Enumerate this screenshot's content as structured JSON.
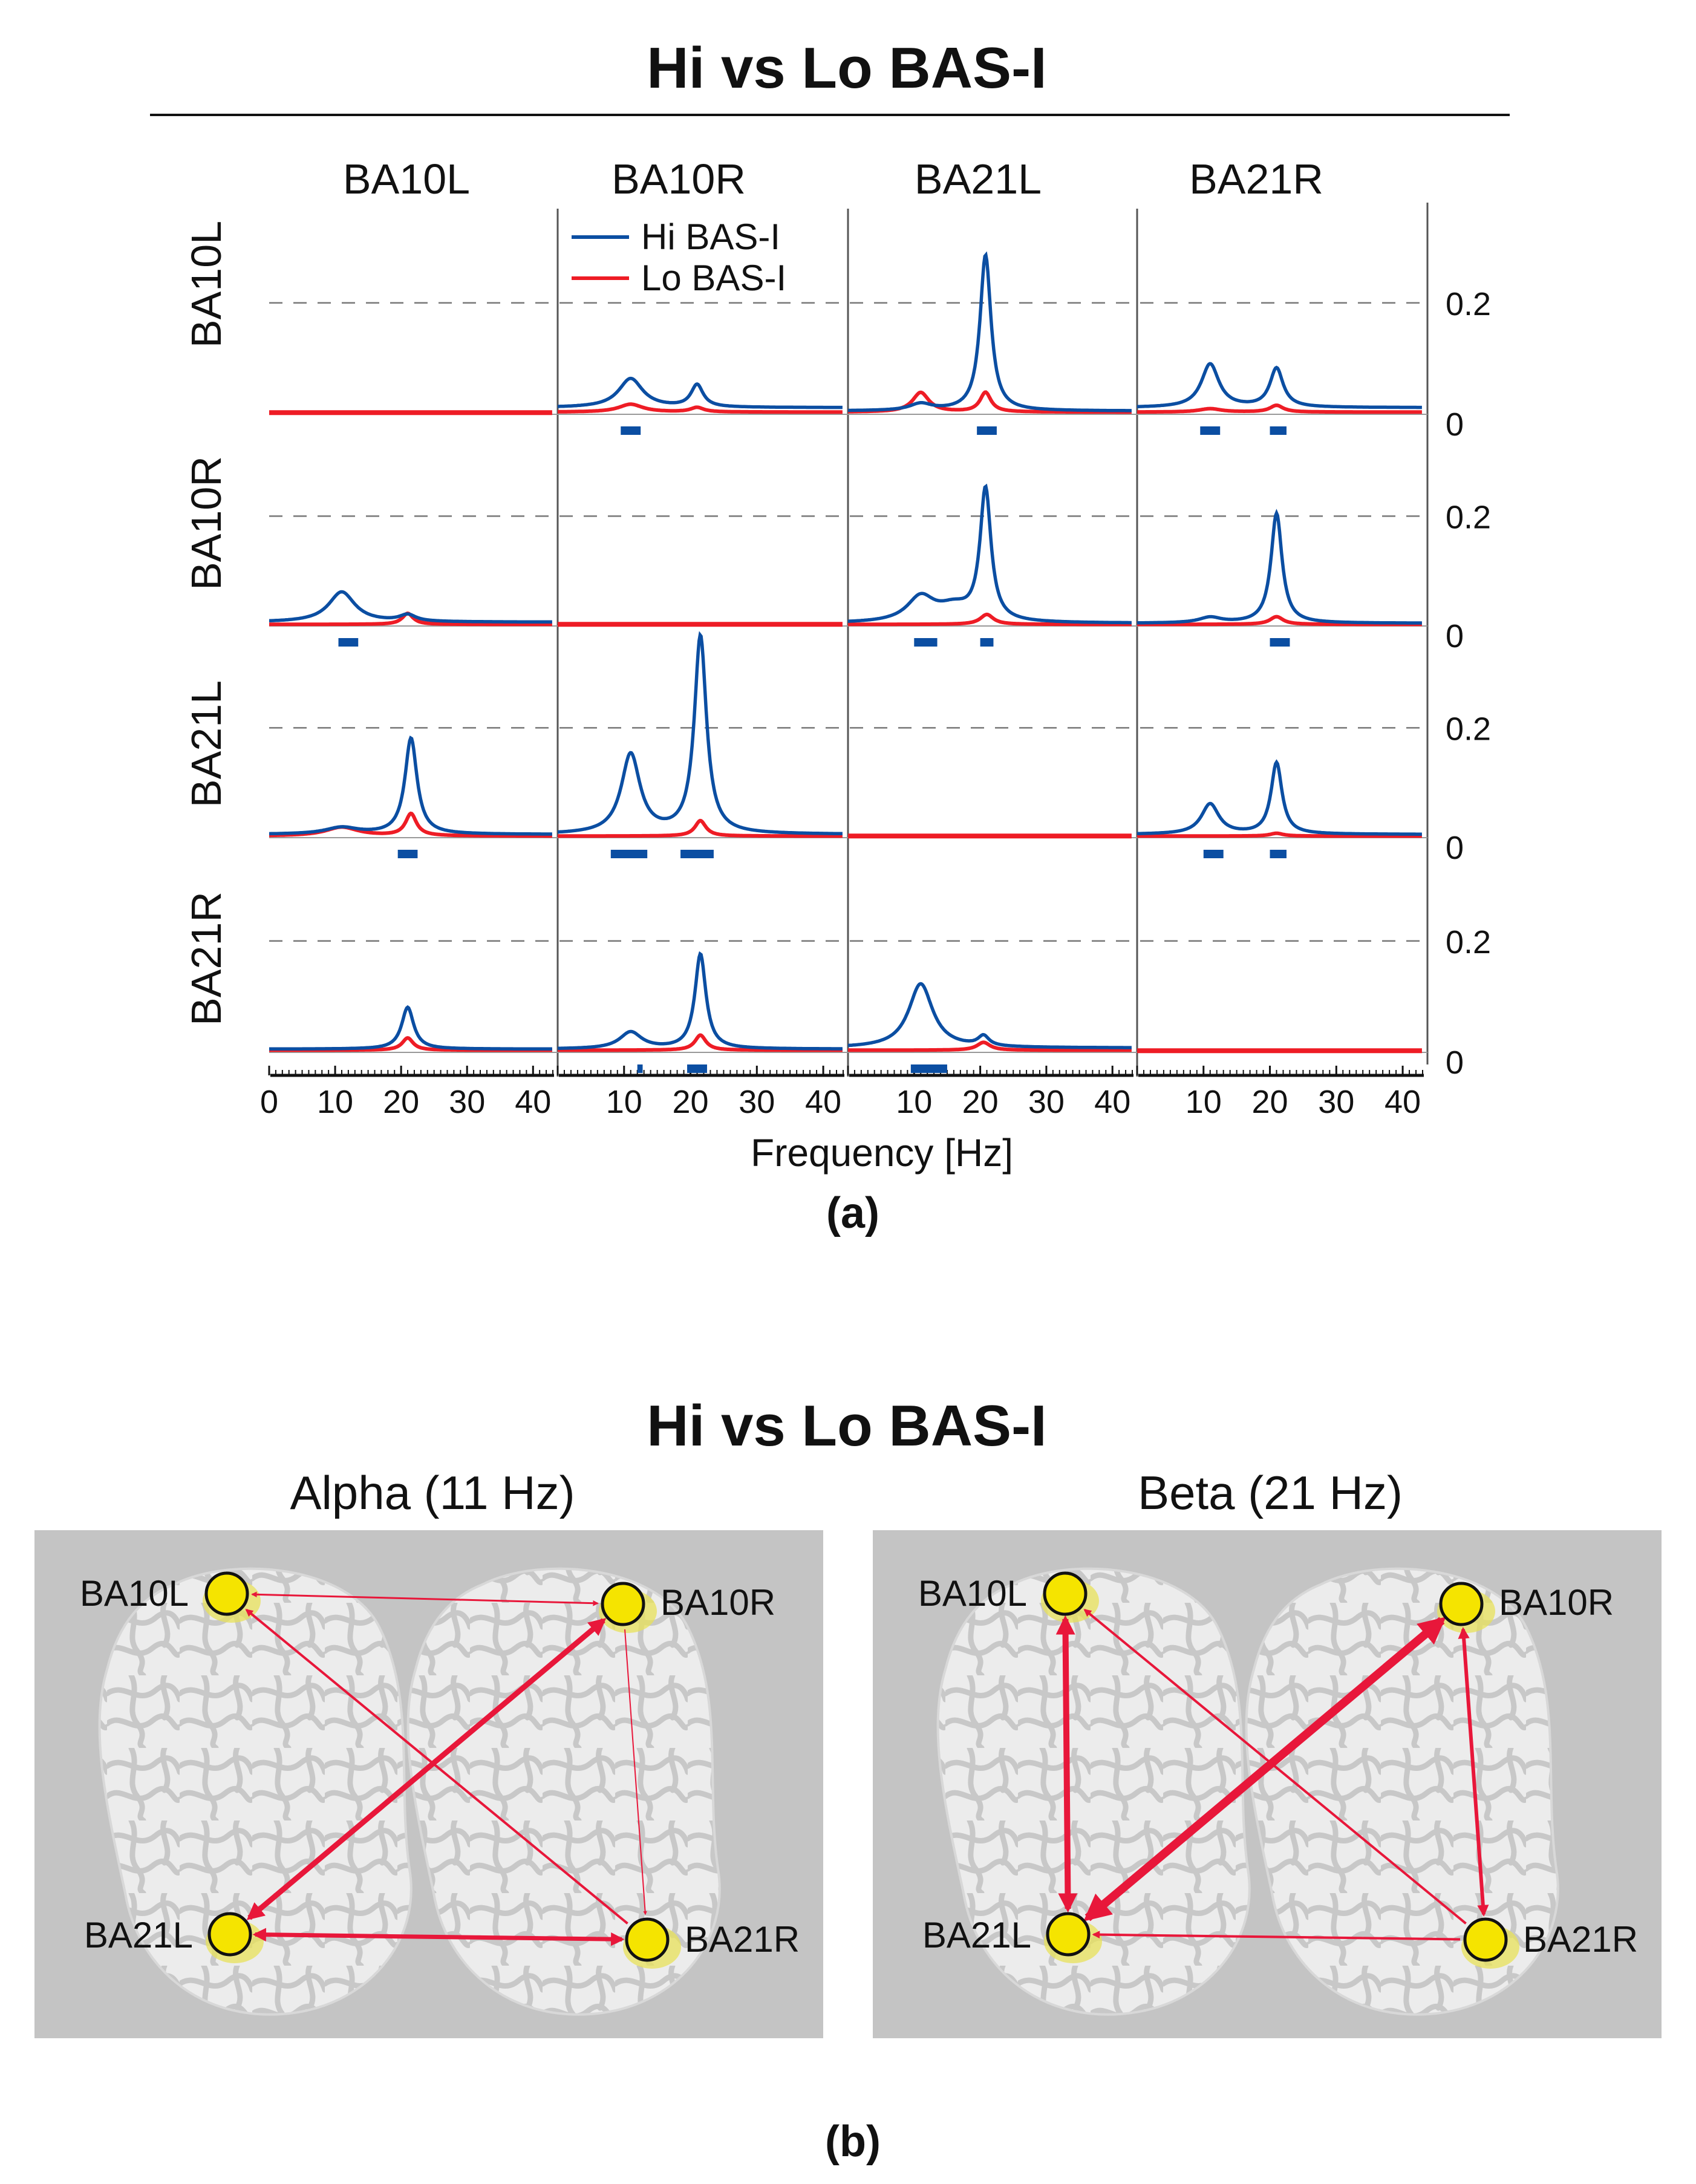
{
  "panel_a": {
    "title": "Hi vs Lo BAS-I",
    "label": "(a)",
    "col_titles": [
      "BA10L",
      "BA10R",
      "BA21L",
      "BA21R"
    ],
    "row_titles": [
      "BA10L",
      "BA10R",
      "BA21L",
      "BA21R"
    ],
    "xlabel": "Frequency [Hz]",
    "ytick_labels": [
      "0",
      "0.2"
    ],
    "legend": [
      "Hi BAS-I",
      "Lo BAS-I"
    ]
  },
  "panel_b": {
    "title": "Hi vs Lo BAS-I",
    "label": "(b)",
    "alpha_title": "Alpha (11 Hz)",
    "beta_title": "Beta (21 Hz)",
    "node_labels": [
      "BA10L",
      "BA10R",
      "BA21L",
      "BA21R"
    ]
  },
  "chart_data": {
    "type": "line",
    "title": "Hi vs Lo BAS-I",
    "xlabel": "Frequency [Hz]",
    "xlim": [
      0,
      43
    ],
    "ylim": [
      0,
      0.38
    ],
    "xticks": [
      0,
      10,
      20,
      30,
      40
    ],
    "yticks": [
      0,
      0.2
    ],
    "colors": {
      "hi": "#0b4ea2",
      "lo": "#ee1c25",
      "sig": "#0b4ea2"
    },
    "series_names": [
      "Hi BAS-I",
      "Lo BAS-I"
    ],
    "cells": [
      {
        "row": "BA10L",
        "col": "BA10R",
        "hi": {
          "base": 0.012,
          "peaks": [
            [
              11,
              0.052,
              2.2
            ],
            [
              21,
              0.04,
              1.1
            ]
          ]
        },
        "lo": {
          "base": 0.004,
          "peaks": [
            [
              11,
              0.014,
              2.2
            ],
            [
              21,
              0.008,
              1.2
            ]
          ]
        },
        "sig": [
          [
            9.5,
            12.5
          ]
        ]
      },
      {
        "row": "BA10L",
        "col": "BA21L",
        "hi": {
          "base": 0.006,
          "peaks": [
            [
              11,
              0.012,
              2
            ],
            [
              20.8,
              0.28,
              1.0
            ]
          ]
        },
        "lo": {
          "base": 0.004,
          "peaks": [
            [
              11,
              0.035,
              1.5
            ],
            [
              20.8,
              0.035,
              1.0
            ]
          ]
        },
        "sig": [
          [
            19.5,
            22.5
          ]
        ]
      },
      {
        "row": "BA10L",
        "col": "BA21R",
        "hi": {
          "base": 0.012,
          "peaks": [
            [
              11,
              0.078,
              1.6
            ],
            [
              21,
              0.07,
              1.2
            ]
          ]
        },
        "lo": {
          "base": 0.004,
          "peaks": [
            [
              11,
              0.006,
              2
            ],
            [
              21,
              0.012,
              1.2
            ]
          ]
        },
        "sig": [
          [
            9.5,
            12.5
          ],
          [
            20,
            22.5
          ]
        ]
      },
      {
        "row": "BA10R",
        "col": "BA10L",
        "hi": {
          "base": 0.007,
          "peaks": [
            [
              11,
              0.055,
              2.4
            ],
            [
              21,
              0.012,
              1.5
            ]
          ]
        },
        "lo": {
          "base": 0.003,
          "peaks": [
            [
              21,
              0.02,
              1.0
            ]
          ]
        },
        "sig": [
          [
            10.5,
            13.5
          ]
        ]
      },
      {
        "row": "BA10R",
        "col": "BA21L",
        "hi": {
          "base": 0.005,
          "peaks": [
            [
              11,
              0.045,
              2.5
            ],
            [
              20.8,
              0.24,
              1.0
            ],
            [
              16,
              0.025,
              3
            ]
          ]
        },
        "lo": {
          "base": 0.003,
          "peaks": [
            [
              21,
              0.018,
              1.2
            ]
          ]
        },
        "sig": [
          [
            10,
            13.5
          ],
          [
            20,
            22
          ]
        ]
      },
      {
        "row": "BA10R",
        "col": "BA21R",
        "hi": {
          "base": 0.005,
          "peaks": [
            [
              11,
              0.01,
              2
            ],
            [
              21,
              0.2,
              1.0
            ]
          ]
        },
        "lo": {
          "base": 0.003,
          "peaks": [
            [
              21,
              0.014,
              1.2
            ]
          ]
        },
        "sig": [
          [
            20,
            23
          ]
        ]
      },
      {
        "row": "BA21L",
        "col": "BA10L",
        "hi": {
          "base": 0.006,
          "peaks": [
            [
              11,
              0.012,
              3
            ],
            [
              21.5,
              0.175,
              1.1
            ]
          ]
        },
        "lo": {
          "base": 0.003,
          "peaks": [
            [
              11,
              0.016,
              3
            ],
            [
              21.5,
              0.04,
              1.0
            ]
          ]
        },
        "sig": [
          [
            19.5,
            22.5
          ]
        ]
      },
      {
        "row": "BA21L",
        "col": "BA10R",
        "hi": {
          "base": 0.006,
          "peaks": [
            [
              11,
              0.145,
              1.7
            ],
            [
              21.5,
              0.36,
              1.1
            ]
          ]
        },
        "lo": {
          "base": 0.003,
          "peaks": [
            [
              21.5,
              0.028,
              1.0
            ]
          ]
        },
        "sig": [
          [
            8,
            13.5
          ],
          [
            18.5,
            23.5
          ]
        ]
      },
      {
        "row": "BA21L",
        "col": "BA21R",
        "hi": {
          "base": 0.006,
          "peaks": [
            [
              11,
              0.055,
              1.6
            ],
            [
              21,
              0.13,
              1.0
            ]
          ]
        },
        "lo": {
          "base": 0.003,
          "peaks": [
            [
              21,
              0.005,
              1.2
            ]
          ]
        },
        "sig": [
          [
            10,
            13
          ],
          [
            20,
            22.5
          ]
        ]
      },
      {
        "row": "BA21R",
        "col": "BA10L",
        "hi": {
          "base": 0.006,
          "peaks": [
            [
              21,
              0.075,
              1.1
            ]
          ]
        },
        "lo": {
          "base": 0.004,
          "peaks": [
            [
              21,
              0.022,
              1.0
            ]
          ]
        },
        "sig": []
      },
      {
        "row": "BA21R",
        "col": "BA10R",
        "hi": {
          "base": 0.006,
          "peaks": [
            [
              11,
              0.03,
              2
            ],
            [
              21.5,
              0.17,
              1.0
            ]
          ]
        },
        "lo": {
          "base": 0.004,
          "peaks": [
            [
              21.5,
              0.027,
              1.0
            ]
          ]
        },
        "sig": [
          [
            12,
            12.8
          ],
          [
            19.5,
            22.5
          ]
        ]
      },
      {
        "row": "BA21R",
        "col": "BA21L",
        "hi": {
          "base": 0.008,
          "peaks": [
            [
              11,
              0.115,
              2.2
            ],
            [
              20.5,
              0.018,
              1.0
            ]
          ]
        },
        "lo": {
          "base": 0.004,
          "peaks": [
            [
              20.5,
              0.014,
              1.2
            ]
          ]
        },
        "sig": [
          [
            9.5,
            15
          ]
        ]
      }
    ],
    "connectivity": {
      "alpha": {
        "title": "Alpha (11 Hz)",
        "edges": [
          {
            "from": "BA10L",
            "to": "BA10R",
            "w": 3,
            "dir": "both"
          },
          {
            "from": "BA21L",
            "to": "BA21R",
            "w": 7,
            "dir": "both"
          },
          {
            "from": "BA10R",
            "to": "BA21L",
            "w": 9,
            "dir": "both"
          },
          {
            "from": "BA21R",
            "to": "BA10L",
            "w": 4,
            "dir": "forward"
          },
          {
            "from": "BA10R",
            "to": "BA21R",
            "w": 2,
            "dir": "forward"
          }
        ]
      },
      "beta": {
        "title": "Beta (21 Hz)",
        "edges": [
          {
            "from": "BA10L",
            "to": "BA21L",
            "w": 10,
            "dir": "both"
          },
          {
            "from": "BA10R",
            "to": "BA21R",
            "w": 6,
            "dir": "both"
          },
          {
            "from": "BA10R",
            "to": "BA21L",
            "w": 14,
            "dir": "both"
          },
          {
            "from": "BA21R",
            "to": "BA10L",
            "w": 4,
            "dir": "forward"
          },
          {
            "from": "BA21R",
            "to": "BA21L",
            "w": 4,
            "dir": "forward"
          }
        ]
      }
    }
  }
}
